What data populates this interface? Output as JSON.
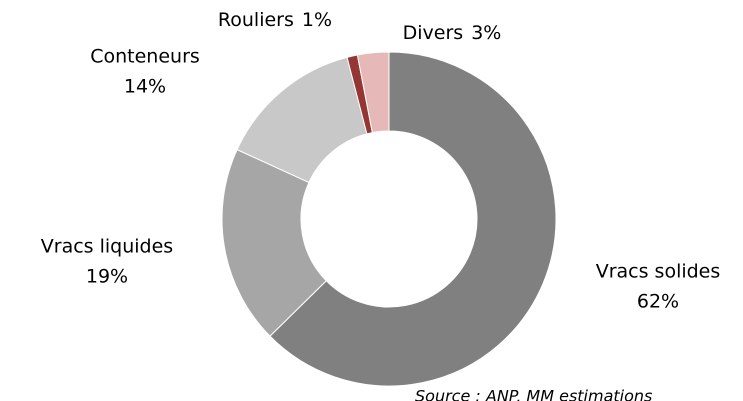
{
  "chart_data": {
    "type": "donut",
    "categories": [
      "Vracs solides",
      "Vracs liquides",
      "Conteneurs",
      "Rouliers",
      "Divers"
    ],
    "values": [
      62,
      19,
      14,
      1,
      3
    ],
    "value_labels": [
      "62%",
      "19%",
      "14%",
      "1%",
      "3%"
    ],
    "colors": [
      "#808080",
      "#a6a6a6",
      "#c8c8c8",
      "#943634",
      "#e6b9b8"
    ],
    "source": "Source : ANP, MM estimations"
  }
}
